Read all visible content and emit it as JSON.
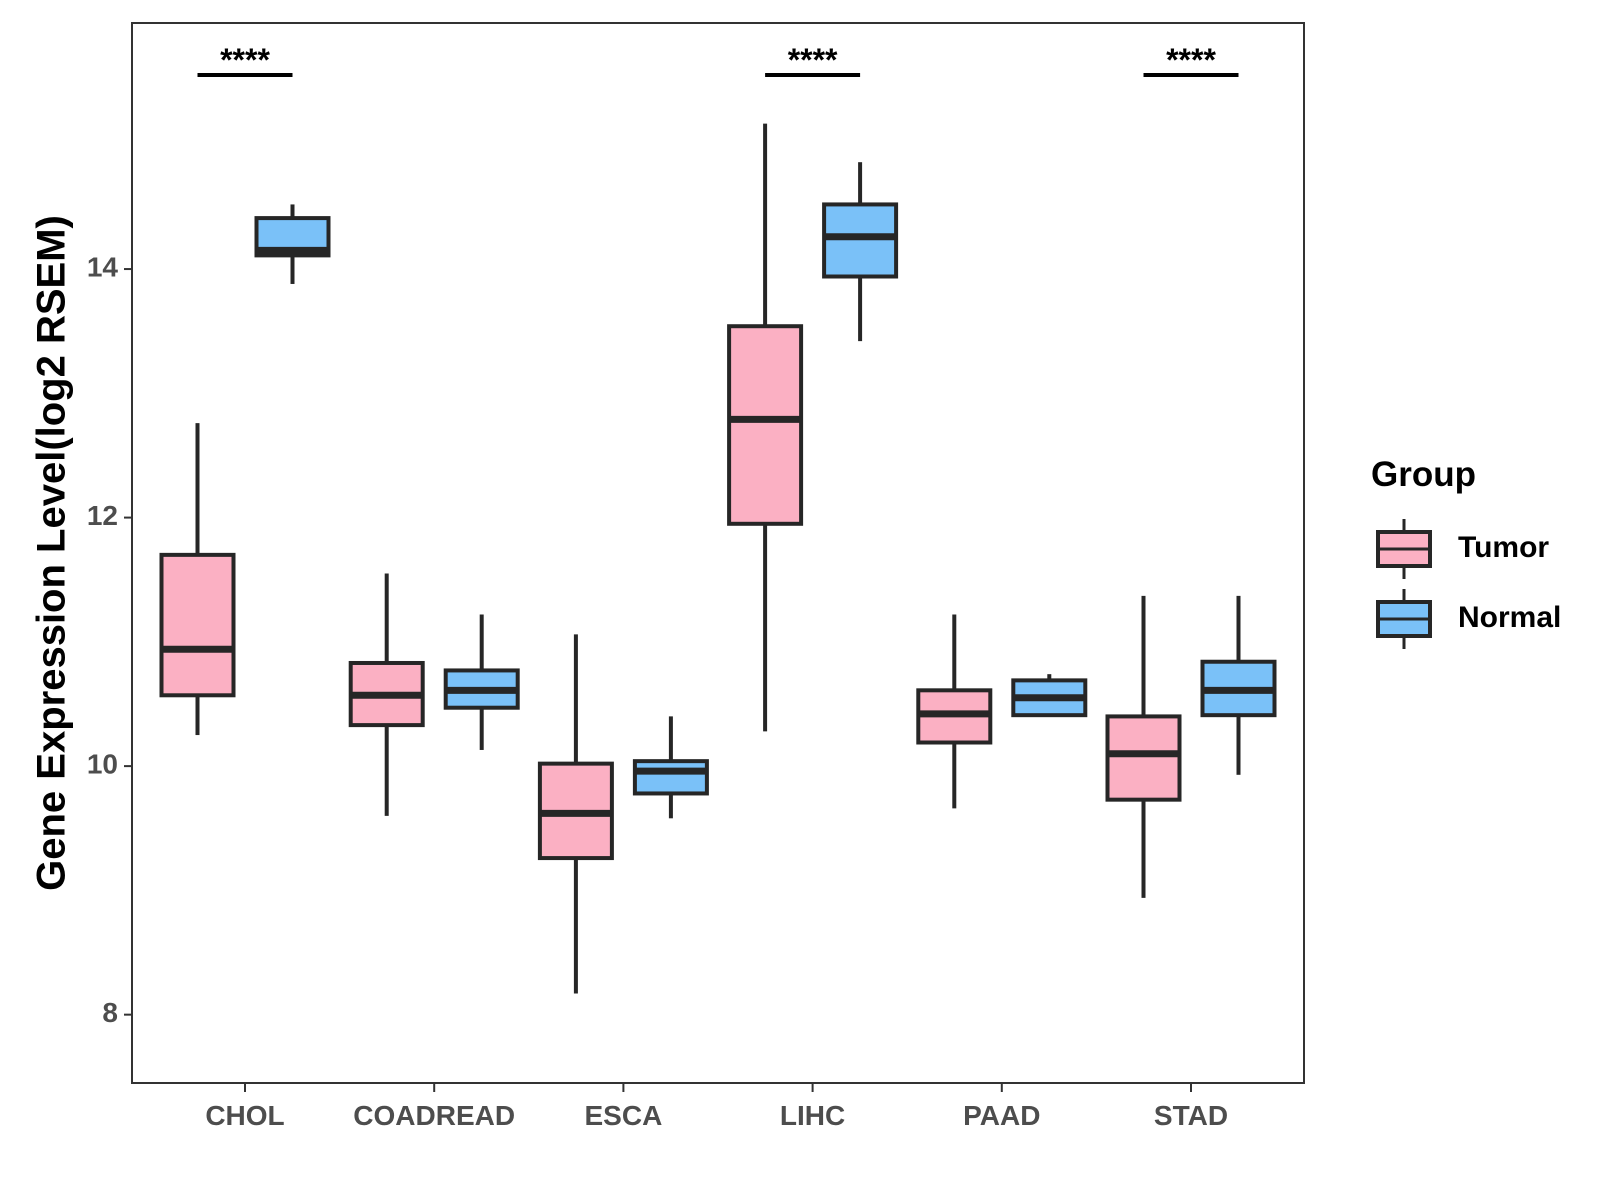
{
  "chart_data": {
    "type": "boxplot",
    "title": "",
    "xlabel": "",
    "ylabel": "Gene Expression Level(log2 RSEM)",
    "ylim": [
      7.45,
      15.98
    ],
    "yticks": [
      8,
      10,
      12,
      14
    ],
    "grid": false,
    "categories": [
      "CHOL",
      "COADREAD",
      "ESCA",
      "LIHC",
      "PAAD",
      "STAD"
    ],
    "legend": {
      "title": "Group",
      "position": "right",
      "entries": [
        "Tumor",
        "Normal"
      ]
    },
    "series": [
      {
        "name": "Tumor",
        "color": "#FBB0C3",
        "boxes": [
          {
            "category": "CHOL",
            "whisker_low": 10.25,
            "q1": 10.57,
            "median": 10.94,
            "q3": 11.7,
            "whisker_high": 12.76
          },
          {
            "category": "COADREAD",
            "whisker_low": 9.6,
            "q1": 10.33,
            "median": 10.57,
            "q3": 10.83,
            "whisker_high": 11.55
          },
          {
            "category": "ESCA",
            "whisker_low": 8.17,
            "q1": 9.26,
            "median": 9.62,
            "q3": 10.02,
            "whisker_high": 11.06
          },
          {
            "category": "LIHC",
            "whisker_low": 10.28,
            "q1": 11.95,
            "median": 12.79,
            "q3": 13.54,
            "whisker_high": 15.17
          },
          {
            "category": "PAAD",
            "whisker_low": 9.66,
            "q1": 10.19,
            "median": 10.42,
            "q3": 10.61,
            "whisker_high": 11.22
          },
          {
            "category": "STAD",
            "whisker_low": 8.94,
            "q1": 9.73,
            "median": 10.1,
            "q3": 10.4,
            "whisker_high": 11.37
          }
        ]
      },
      {
        "name": "Normal",
        "color": "#7AC1F8",
        "boxes": [
          {
            "category": "CHOL",
            "whisker_low": 13.88,
            "q1": 14.11,
            "median": 14.15,
            "q3": 14.41,
            "whisker_high": 14.52
          },
          {
            "category": "COADREAD",
            "whisker_low": 10.13,
            "q1": 10.47,
            "median": 10.61,
            "q3": 10.77,
            "whisker_high": 11.22
          },
          {
            "category": "ESCA",
            "whisker_low": 9.58,
            "q1": 9.78,
            "median": 9.96,
            "q3": 10.04,
            "whisker_high": 10.4
          },
          {
            "category": "LIHC",
            "whisker_low": 13.42,
            "q1": 13.94,
            "median": 14.26,
            "q3": 14.52,
            "whisker_high": 14.86
          },
          {
            "category": "PAAD",
            "whisker_low": 10.41,
            "q1": 10.41,
            "median": 10.55,
            "q3": 10.69,
            "whisker_high": 10.74
          },
          {
            "category": "STAD",
            "whisker_low": 9.93,
            "q1": 10.41,
            "median": 10.61,
            "q3": 10.84,
            "whisker_high": 11.37
          }
        ]
      }
    ],
    "annotations": [
      {
        "category": "CHOL",
        "label": "****"
      },
      {
        "category": "LIHC",
        "label": "****"
      },
      {
        "category": "STAD",
        "label": "****"
      }
    ]
  }
}
